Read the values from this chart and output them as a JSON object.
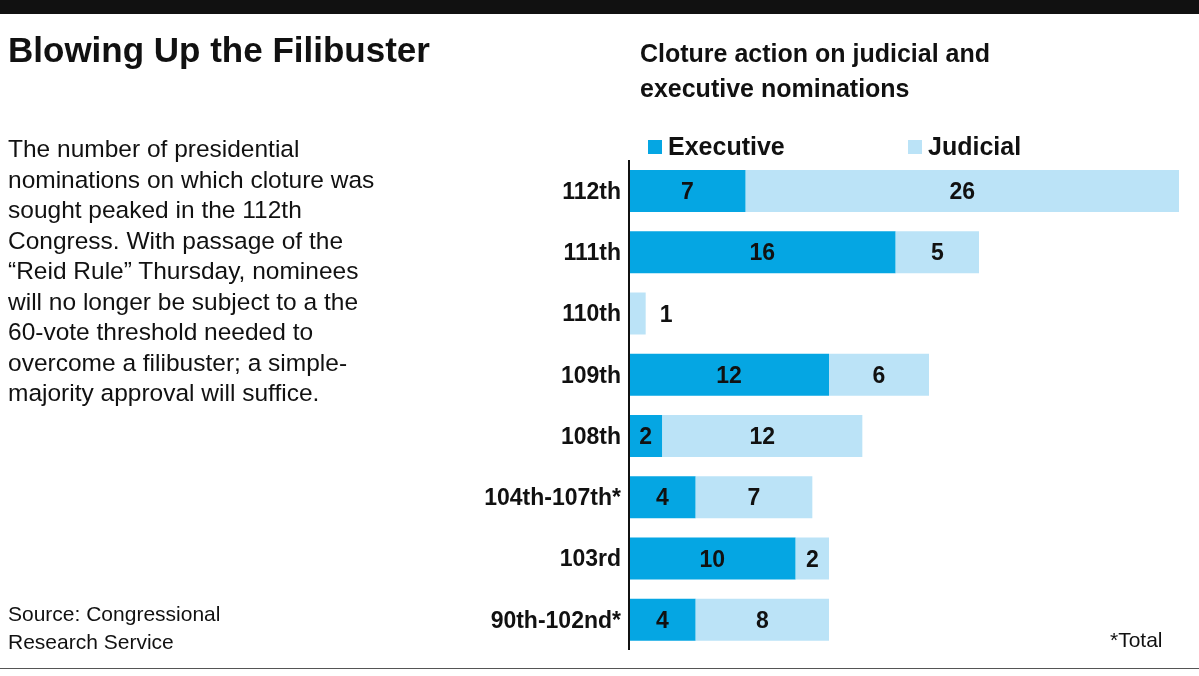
{
  "chart_data": {
    "type": "bar",
    "orientation": "horizontal",
    "stacked": true,
    "title": "Blowing Up the Filibuster",
    "subtitle": "Cloture action on judicial and executive nominations",
    "categories": [
      "112th",
      "111th",
      "110th",
      "109th",
      "108th",
      "104th-107th*",
      "103rd",
      "90th-102nd*"
    ],
    "series": [
      {
        "name": "Executive",
        "color": "#05a6e3",
        "values": [
          7,
          16,
          null,
          12,
          2,
          4,
          10,
          4
        ]
      },
      {
        "name": "Judicial",
        "color": "#bbe3f7",
        "values": [
          26,
          5,
          1,
          6,
          12,
          7,
          2,
          8
        ]
      }
    ],
    "data_labels": true,
    "legend": "top",
    "grid": false,
    "annotations": [
      "The number of presidential nominations on which cloture was sought peaked in the 112th Congress. With passage of the “Reid Rule” Thursday, nominees will no longer be subject to a the 60-vote threshold needed to overcome a filibuster; a simple-majority approval will suffice.",
      "Source: Congressional Research Service",
      "*Total"
    ]
  }
}
